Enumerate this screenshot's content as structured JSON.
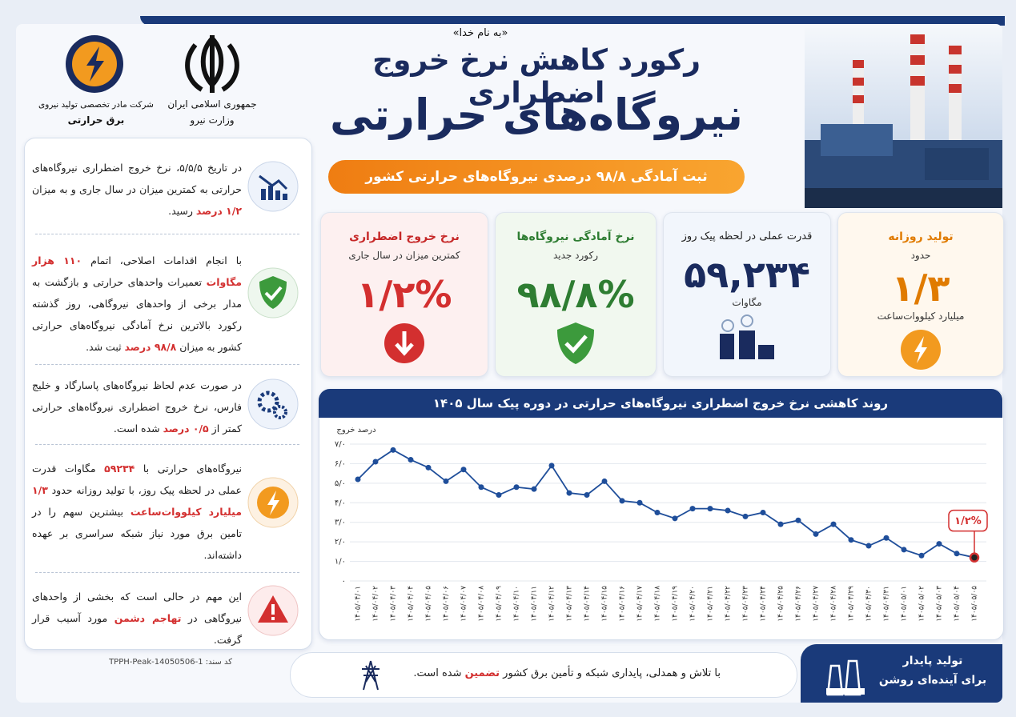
{
  "header": {
    "basmala": "«به نام خدا»",
    "title_line1": "رکورد کاهش نرخ خروج اضطراری",
    "title_line2": "نیروگاه‌های حرارتی",
    "banner": "ثبت آمادگی ۹۸/۸ درصدی نیروگاه‌های حرارتی کشور"
  },
  "logos": {
    "ministry": [
      "جمهوری اسلامی ایران",
      "وزارت نیرو"
    ],
    "company": [
      "شرکت مادر تخصصی تولید نیروی",
      "برق حرارتی"
    ]
  },
  "cards": [
    {
      "title": "تولید روزانه",
      "subtitle": "حدود",
      "value": "۱/۳",
      "unit": "میلیارد کیلووات‌ساعت"
    },
    {
      "title": "قدرت عملی در لحظه پیک روز",
      "value": "۵۹,۲۳۴",
      "unit": "مگاوات"
    },
    {
      "title": "نرخ آمادگی نیروگاه‌ها",
      "subtitle": "رکورد جدید",
      "value": "۹۸/۸%"
    },
    {
      "title": "نرخ خروج اضطراری",
      "subtitle": "کمترین میزان در سال جاری",
      "value": "۱/۲%"
    }
  ],
  "left_items": [
    {
      "parts": [
        "در تاریخ ۵/۵/۵، نرخ خروج اضطراری نیروگاه‌های حرارتی به کمترین میزان در سال جاری و به میزان ",
        "۱/۲ درصد",
        " رسید."
      ]
    },
    {
      "parts": [
        "با انجام اقدامات اصلاحی، اتمام ",
        "۱۱۰ هزار مگاوات",
        " تعمیرات واحدهای حرارتی و بازگشت به مدار برخی از واحدهای نیروگاهی، روز گذشته رکورد بالاترین نرخ آمادگی نیروگاه‌های حرارتی کشور به میزان ",
        "۹۸/۸ درصد",
        " ثبت شد."
      ]
    },
    {
      "parts": [
        "در صورت عدم لحاظ نیروگاه‌های پاسارگاد و خلیج فارس، نرخ خروج اضطراری نیروگاه‌های حرارتی کمتر از ",
        "۰/۵ درصد",
        " شده است."
      ]
    },
    {
      "parts": [
        "نیروگاه‌های حرارتی با ",
        "۵۹۲۳۴",
        " مگاوات قدرت عملی در لحظه پیک روز، با تولید روزانه حدود ",
        "۱/۳ میلیارد کیلووات‌ساعت",
        " بیشترین سهم را در تامین برق مورد نیاز شبکه سراسری بر عهده داشته‌اند."
      ]
    },
    {
      "parts": [
        "این مهم در حالی است که بخشی از واحدهای نیروگاهی در ",
        "تهاجم دشمن",
        " مورد آسیب قرار گرفت."
      ]
    }
  ],
  "chart_data": {
    "type": "line",
    "title": "روند کاهشی نرخ خروج اضطراری نیروگاه‌های حرارتی در دوره پیک سال ۱۴۰۵",
    "y_label": "درصد خروج",
    "annotation": "۱/۲%",
    "color": "#1f4e9a",
    "highlight_color": "#d32f2f",
    "grid": true,
    "categories": [
      "۱۴۰۵/۰۴/۰۱",
      "۱۴۰۵/۰۴/۰۲",
      "۱۴۰۵/۰۴/۰۳",
      "۱۴۰۵/۰۴/۰۴",
      "۱۴۰۵/۰۴/۰۵",
      "۱۴۰۵/۰۴/۰۶",
      "۱۴۰۵/۰۴/۰۷",
      "۱۴۰۵/۰۴/۰۸",
      "۱۴۰۵/۰۴/۰۹",
      "۱۴۰۵/۰۴/۱۰",
      "۱۴۰۵/۰۴/۱۱",
      "۱۴۰۵/۰۴/۱۲",
      "۱۴۰۵/۰۴/۱۳",
      "۱۴۰۵/۰۴/۱۴",
      "۱۴۰۵/۰۴/۱۵",
      "۱۴۰۵/۰۴/۱۶",
      "۱۴۰۵/۰۴/۱۷",
      "۱۴۰۵/۰۴/۱۸",
      "۱۴۰۵/۰۴/۱۹",
      "۱۴۰۵/۰۴/۲۰",
      "۱۴۰۵/۰۴/۲۱",
      "۱۴۰۵/۰۴/۲۲",
      "۱۴۰۵/۰۴/۲۳",
      "۱۴۰۵/۰۴/۲۴",
      "۱۴۰۵/۰۴/۲۵",
      "۱۴۰۵/۰۴/۲۶",
      "۱۴۰۵/۰۴/۲۷",
      "۱۴۰۵/۰۴/۲۸",
      "۱۴۰۵/۰۴/۲۹",
      "۱۴۰۵/۰۴/۳۰",
      "۱۴۰۵/۰۴/۳۱",
      "۱۴۰۵/۰۵/۰۱",
      "۱۴۰۵/۰۵/۰۲",
      "۱۴۰۵/۰۵/۰۳",
      "۱۴۰۵/۰۵/۰۴",
      "۱۴۰۵/۰۵/۰۵"
    ],
    "values": [
      5.2,
      6.1,
      6.7,
      6.2,
      5.8,
      5.1,
      5.7,
      4.8,
      4.4,
      4.8,
      4.7,
      5.9,
      4.5,
      4.4,
      5.1,
      4.1,
      4.0,
      3.5,
      3.2,
      3.7,
      3.7,
      3.6,
      3.3,
      3.5,
      2.9,
      3.1,
      2.4,
      2.9,
      2.1,
      1.8,
      2.2,
      1.6,
      1.3,
      1.9,
      1.4,
      1.2
    ],
    "ylim": [
      0,
      7
    ],
    "yticks": [
      {
        "value": 0,
        "label": "۰"
      },
      {
        "value": 1,
        "label": "۱/۰"
      },
      {
        "value": 2,
        "label": "۲/۰"
      },
      {
        "value": 3,
        "label": "۳/۰"
      },
      {
        "value": 4,
        "label": "۴/۰"
      },
      {
        "value": 5,
        "label": "۵/۰"
      },
      {
        "value": 6,
        "label": "۶/۰"
      },
      {
        "value": 7,
        "label": "۷/۰"
      }
    ]
  },
  "footer": {
    "code_label": "کد سند:",
    "code": "TPPH-Peak-14050506-1",
    "slogan_parts": [
      "با تلاش و همدلی، پایداری شبکه و تأمین برق کشور ",
      "تضمین",
      " شده است."
    ],
    "tagline": [
      "تولید پایدار",
      "برای آینده‌ای روشن"
    ]
  }
}
